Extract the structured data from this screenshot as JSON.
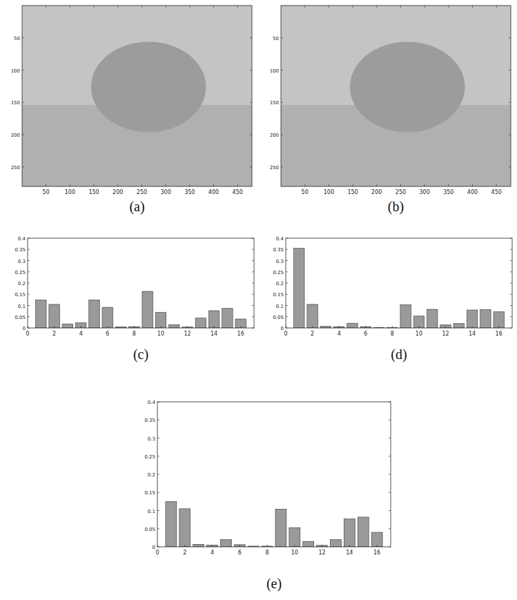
{
  "chart_data": [
    {
      "type": "image",
      "title": "(a)",
      "xlim": [
        0,
        480
      ],
      "ylim": [
        0,
        280
      ],
      "xticks": [
        50,
        100,
        150,
        200,
        250,
        300,
        350,
        400,
        450
      ],
      "yticks": [
        50,
        100,
        150,
        200,
        250
      ]
    },
    {
      "type": "image",
      "title": "(b)",
      "xlim": [
        0,
        480
      ],
      "ylim": [
        0,
        280
      ],
      "xticks": [
        50,
        100,
        150,
        200,
        250,
        300,
        350,
        400,
        450
      ],
      "yticks": [
        50,
        100,
        150,
        200,
        250
      ]
    },
    {
      "type": "bar",
      "title": "(c)",
      "color": "#9a9a9a",
      "x": [
        1,
        2,
        3,
        4,
        5,
        6,
        7,
        8,
        9,
        10,
        11,
        12,
        13,
        14,
        15,
        16
      ],
      "values": [
        0.125,
        0.105,
        0.018,
        0.023,
        0.125,
        0.092,
        0.005,
        0.006,
        0.163,
        0.07,
        0.015,
        0.004,
        0.044,
        0.077,
        0.087,
        0.04
      ],
      "xlim": [
        0,
        17
      ],
      "ylim": [
        0,
        0.4
      ],
      "xticks": [
        0,
        2,
        4,
        6,
        8,
        10,
        12,
        14,
        16
      ],
      "yticks": [
        0,
        0.05,
        0.1,
        0.15,
        0.2,
        0.25,
        0.3,
        0.35,
        0.4
      ]
    },
    {
      "type": "bar",
      "title": "(d)",
      "color": "#9a9a9a",
      "x": [
        1,
        2,
        3,
        4,
        5,
        6,
        7,
        8,
        9,
        10,
        11,
        12,
        13,
        14,
        15,
        16
      ],
      "values": [
        0.355,
        0.105,
        0.007,
        0.006,
        0.021,
        0.006,
        0.002,
        0.002,
        0.104,
        0.053,
        0.083,
        0.014,
        0.02,
        0.08,
        0.082,
        0.072
      ],
      "xlim": [
        0,
        17
      ],
      "ylim": [
        0,
        0.4
      ],
      "xticks": [
        0,
        2,
        4,
        6,
        8,
        10,
        12,
        14,
        16
      ],
      "yticks": [
        0,
        0.05,
        0.1,
        0.15,
        0.2,
        0.25,
        0.3,
        0.35,
        0.4
      ]
    },
    {
      "type": "bar",
      "title": "(e)",
      "color": "#9a9a9a",
      "x": [
        1,
        2,
        3,
        4,
        5,
        6,
        7,
        8,
        9,
        10,
        11,
        12,
        13,
        14,
        15,
        16
      ],
      "values": [
        0.125,
        0.105,
        0.007,
        0.005,
        0.02,
        0.006,
        0.002,
        0.002,
        0.104,
        0.053,
        0.015,
        0.004,
        0.02,
        0.077,
        0.082,
        0.04
      ],
      "xlim": [
        0,
        17
      ],
      "ylim": [
        0,
        0.4
      ],
      "xticks": [
        0,
        2,
        4,
        6,
        8,
        10,
        12,
        14,
        16
      ],
      "yticks": [
        0,
        0.05,
        0.1,
        0.15,
        0.2,
        0.25,
        0.3,
        0.35,
        0.4
      ]
    }
  ]
}
